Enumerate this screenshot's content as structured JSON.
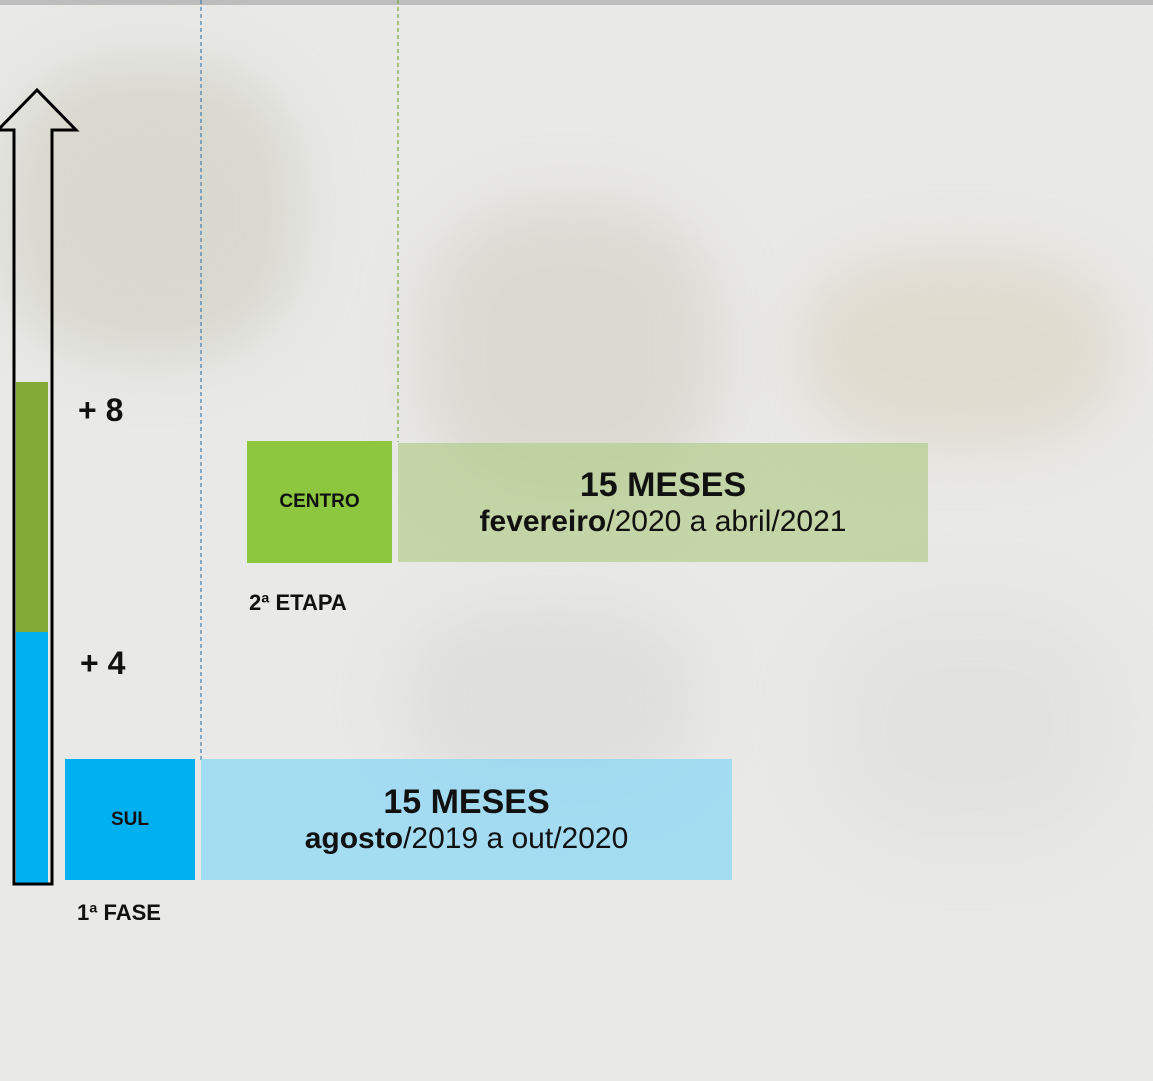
{
  "levels": [
    "+ 8",
    "+ 4"
  ],
  "phases": [
    {
      "region": "CENTRO",
      "duration": "15 MESES",
      "start": "fevereiro",
      "rest": "/2020 a abril/2021",
      "caption": "2ª ETAPA"
    },
    {
      "region": "SUL",
      "duration": "15 MESES",
      "start": "agosto",
      "rest": "/2019 a out/2020",
      "caption": "1ª FASE"
    }
  ]
}
